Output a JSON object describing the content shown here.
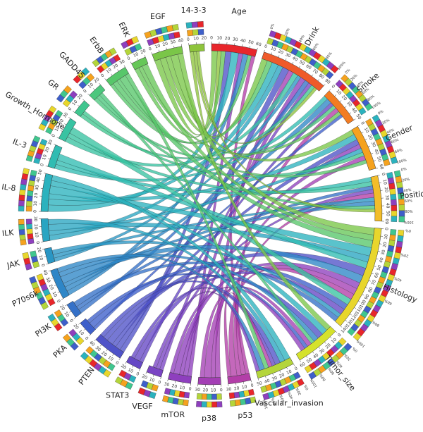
{
  "chart_data": {
    "type": "chord",
    "title": "",
    "clinical_variables": [
      {
        "name": "Age",
        "color": "#e8262b",
        "max": 60,
        "tick_step": 10,
        "percent_ring": false
      },
      {
        "name": "Drink",
        "color": "#ef5a2a",
        "max": 90,
        "tick_step": 10,
        "percent_ring": true
      },
      {
        "name": "Smoke",
        "color": "#f37c22",
        "max": 50,
        "tick_step": 10,
        "percent_ring": true
      },
      {
        "name": "Gender",
        "color": "#f5a21e",
        "max": 60,
        "tick_step": 10,
        "percent_ring": true
      },
      {
        "name": "Position",
        "color": "#f2bd2a",
        "max": 60,
        "tick_step": 10,
        "percent_ring": true
      },
      {
        "name": "Histology",
        "color": "#e8d62c",
        "max": 140,
        "tick_step": 10,
        "percent_ring": true
      },
      {
        "name": "Tumor_size",
        "color": "#d5e22c",
        "max": 60,
        "tick_step": 10,
        "percent_ring": true
      },
      {
        "name": "Vascular_invasion",
        "color": "#b4d53a",
        "max": 50,
        "tick_step": 10,
        "percent_ring": true
      }
    ],
    "genes": [
      {
        "name": "p53",
        "color": "#b33ea8",
        "max": 30,
        "tick_step": 10
      },
      {
        "name": "p38",
        "color": "#a43fb5",
        "max": 30,
        "tick_step": 10
      },
      {
        "name": "mTOR",
        "color": "#8e3fbe",
        "max": 30,
        "tick_step": 10
      },
      {
        "name": "VEGF",
        "color": "#7a44c4",
        "max": 20,
        "tick_step": 10
      },
      {
        "name": "STAT3",
        "color": "#6547c5",
        "max": 20,
        "tick_step": 10
      },
      {
        "name": "PTEN",
        "color": "#4f52c8",
        "max": 40,
        "tick_step": 10
      },
      {
        "name": "PKA",
        "color": "#3e5fca",
        "max": 20,
        "tick_step": 10
      },
      {
        "name": "PI3K",
        "color": "#3571c8",
        "max": 20,
        "tick_step": 10
      },
      {
        "name": "P70s6k",
        "color": "#2e86c7",
        "max": 40,
        "tick_step": 10
      },
      {
        "name": "JAK",
        "color": "#2a96c4",
        "max": 20,
        "tick_step": 10
      },
      {
        "name": "ILK",
        "color": "#29a5c2",
        "max": 30,
        "tick_step": 10
      },
      {
        "name": "IL-8",
        "color": "#2bb2be",
        "max": 50,
        "tick_step": 10
      },
      {
        "name": "IL-3",
        "color": "#31bcb2",
        "max": 30,
        "tick_step": 10
      },
      {
        "name": "Growth_Hormone",
        "color": "#38c3a2",
        "max": 30,
        "tick_step": 10
      },
      {
        "name": "GR",
        "color": "#40c68f",
        "max": 20,
        "tick_step": 10
      },
      {
        "name": "GADD45",
        "color": "#4bc77d",
        "max": 20,
        "tick_step": 10
      },
      {
        "name": "ErbB",
        "color": "#57c76a",
        "max": 30,
        "tick_step": 10
      },
      {
        "name": "ERK",
        "color": "#66c758",
        "max": 20,
        "tick_step": 10
      },
      {
        "name": "EGF",
        "color": "#7ac648",
        "max": 40,
        "tick_step": 10
      },
      {
        "name": "14-3-3",
        "color": "#8ec43c",
        "max": 20,
        "tick_step": 10
      }
    ],
    "percent_ticks": [
      "0%",
      "20%",
      "40%",
      "60%",
      "80%",
      "100%"
    ],
    "links": [
      [
        "Age",
        "EGF",
        8
      ],
      [
        "Age",
        "14-3-3",
        5
      ],
      [
        "Age",
        "ERK",
        6
      ],
      [
        "Age",
        "PTEN",
        8
      ],
      [
        "Age",
        "IL-8",
        10
      ],
      [
        "Age",
        "mTOR",
        6
      ],
      [
        "Age",
        "P70s6k",
        7
      ],
      [
        "Age",
        "ErbB",
        5
      ],
      [
        "Age",
        "p53",
        5
      ],
      [
        "Drink",
        "EGF",
        8
      ],
      [
        "Drink",
        "ErbB",
        7
      ],
      [
        "Drink",
        "IL-8",
        9
      ],
      [
        "Drink",
        "ILK",
        7
      ],
      [
        "Drink",
        "PTEN",
        9
      ],
      [
        "Drink",
        "p38",
        7
      ],
      [
        "Drink",
        "Growth_Hormone",
        7
      ],
      [
        "Drink",
        "JAK",
        5
      ],
      [
        "Drink",
        "mTOR",
        7
      ],
      [
        "Drink",
        "PI3K",
        6
      ],
      [
        "Drink",
        "VEGF",
        5
      ],
      [
        "Drink",
        "GR",
        5
      ],
      [
        "Drink",
        "14-3-3",
        4
      ],
      [
        "Smoke",
        "IL-3",
        6
      ],
      [
        "Smoke",
        "P70s6k",
        7
      ],
      [
        "Smoke",
        "STAT3",
        5
      ],
      [
        "Smoke",
        "GADD45",
        5
      ],
      [
        "Smoke",
        "p53",
        6
      ],
      [
        "Smoke",
        "ERK",
        5
      ],
      [
        "Smoke",
        "PKA",
        4
      ],
      [
        "Gender",
        "EGF",
        7
      ],
      [
        "Gender",
        "IL-8",
        8
      ],
      [
        "Gender",
        "PTEN",
        7
      ],
      [
        "Gender",
        "mTOR",
        6
      ],
      [
        "Gender",
        "ILK",
        6
      ],
      [
        "Gender",
        "GR",
        5
      ],
      [
        "Gender",
        "p38",
        6
      ],
      [
        "Gender",
        "ErbB",
        5
      ],
      [
        "Position",
        "IL-3",
        6
      ],
      [
        "Position",
        "Growth_Hormone",
        6
      ],
      [
        "Position",
        "PI3K",
        5
      ],
      [
        "Position",
        "VEGF",
        5
      ],
      [
        "Position",
        "p53",
        6
      ],
      [
        "Position",
        "JAK",
        5
      ],
      [
        "Position",
        "P70s6k",
        6
      ],
      [
        "Position",
        "GADD45",
        5
      ],
      [
        "Position",
        "14-3-3",
        4
      ],
      [
        "Histology",
        "EGF",
        10
      ],
      [
        "Histology",
        "ERK",
        8
      ],
      [
        "Histology",
        "ErbB",
        10
      ],
      [
        "Histology",
        "IL-8",
        12
      ],
      [
        "Histology",
        "ILK",
        9
      ],
      [
        "Histology",
        "IL-3",
        9
      ],
      [
        "Histology",
        "PTEN",
        11
      ],
      [
        "Histology",
        "P70s6k",
        11
      ],
      [
        "Histology",
        "mTOR",
        9
      ],
      [
        "Histology",
        "p38",
        9
      ],
      [
        "Histology",
        "p53",
        8
      ],
      [
        "Histology",
        "Growth_Hormone",
        9
      ],
      [
        "Histology",
        "PKA",
        8
      ],
      [
        "Histology",
        "STAT3",
        8
      ],
      [
        "Histology",
        "JAK",
        6
      ],
      [
        "Histology",
        "PI3K",
        7
      ],
      [
        "Tumor_size",
        "EGF",
        7
      ],
      [
        "Tumor_size",
        "IL-8",
        8
      ],
      [
        "Tumor_size",
        "PTEN",
        8
      ],
      [
        "Tumor_size",
        "P70s6k",
        7
      ],
      [
        "Tumor_size",
        "GADD45",
        5
      ],
      [
        "Tumor_size",
        "p38",
        6
      ],
      [
        "Tumor_size",
        "PKA",
        5
      ],
      [
        "Tumor_size",
        "mTOR",
        6
      ],
      [
        "Vascular_invasion",
        "IL-8",
        8
      ],
      [
        "Vascular_invasion",
        "ILK",
        7
      ],
      [
        "Vascular_invasion",
        "PTEN",
        7
      ],
      [
        "Vascular_invasion",
        "STAT3",
        5
      ],
      [
        "Vascular_invasion",
        "p53",
        5
      ],
      [
        "Vascular_invasion",
        "ErbB",
        6
      ],
      [
        "Vascular_invasion",
        "P70s6k",
        7
      ],
      [
        "Vascular_invasion",
        "VEGF",
        5
      ]
    ]
  }
}
